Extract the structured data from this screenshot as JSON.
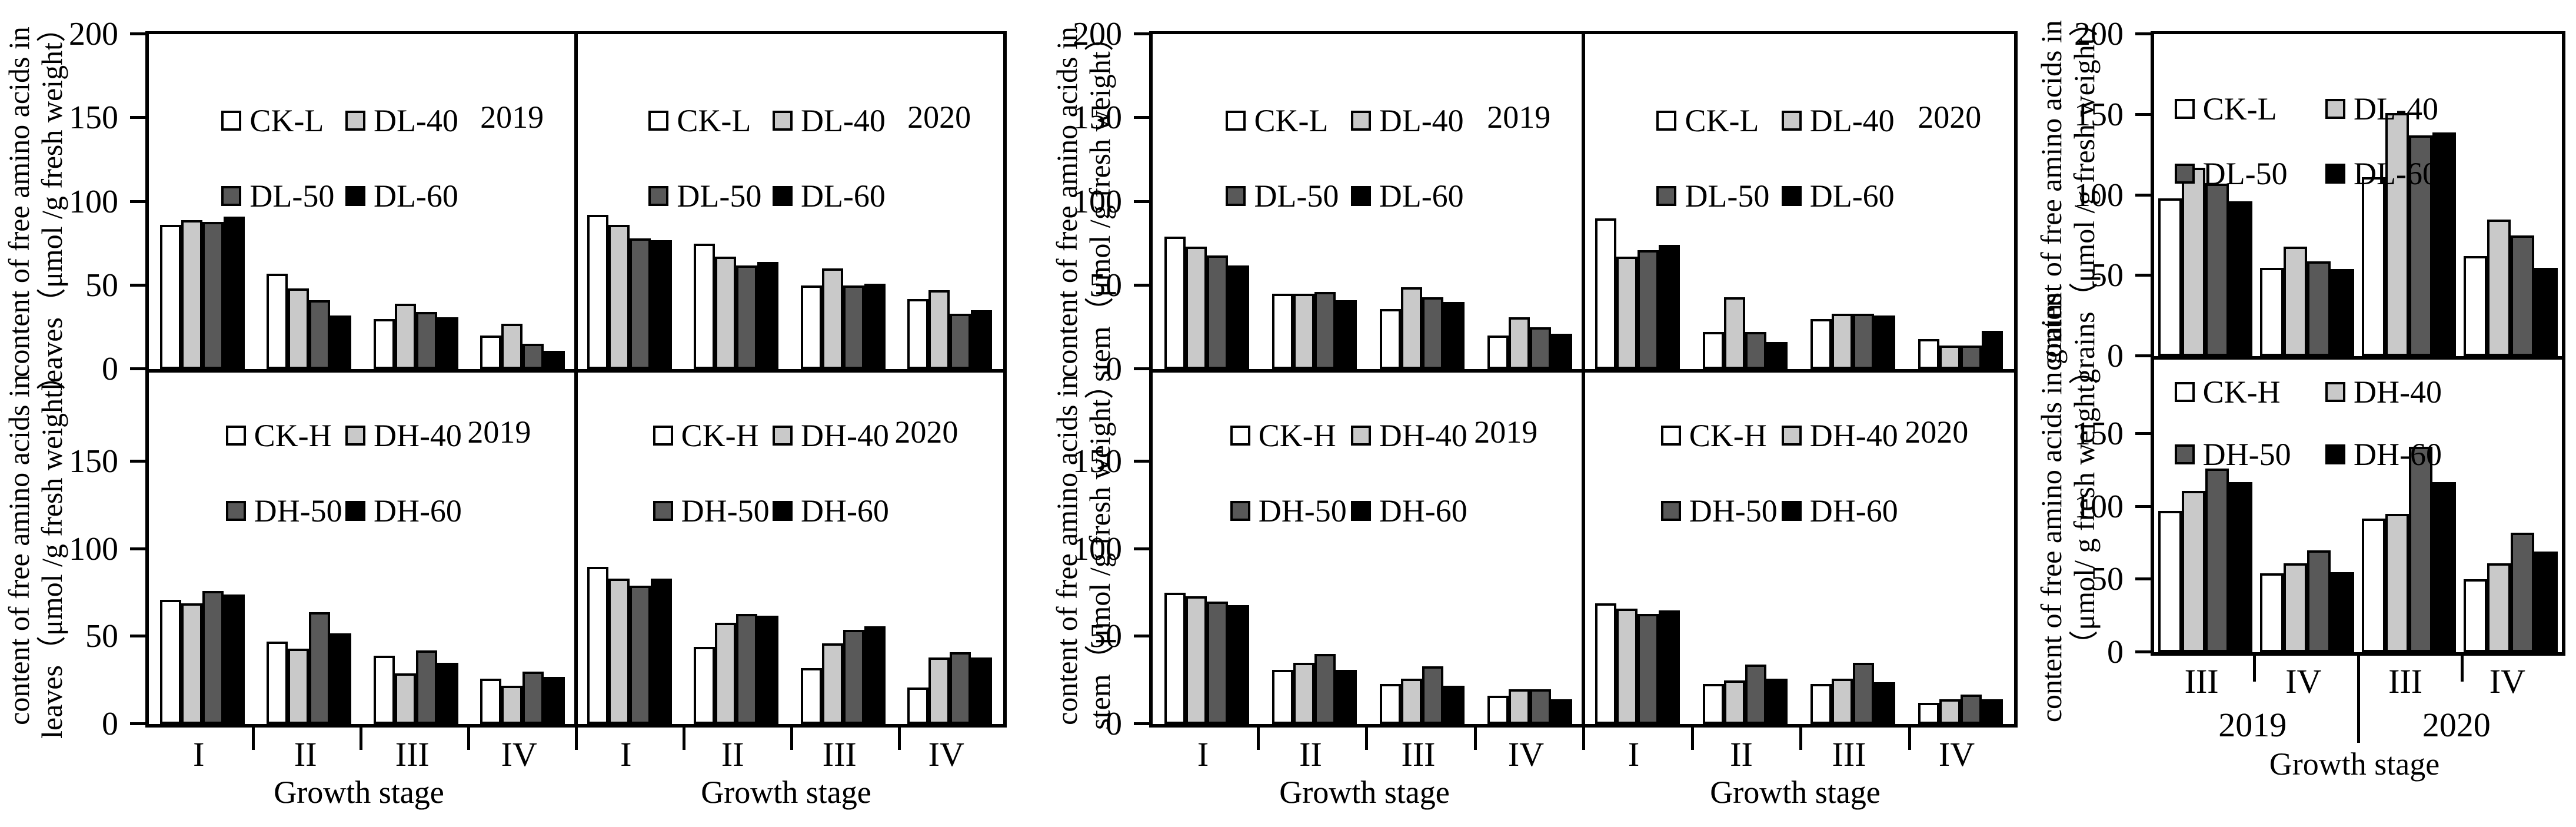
{
  "colors": {
    "series_fills": [
      "#ffffff",
      "#c9c9c9",
      "#595959",
      "#000000"
    ],
    "bar_border": "#000000",
    "axis": "#000000"
  },
  "axis": {
    "x_title": "Growth stage",
    "stages_full": [
      "I",
      "II",
      "III",
      "IV"
    ],
    "stages_grain": [
      "III",
      "IV",
      "III",
      "IV"
    ],
    "grain_year_groups": [
      "2019",
      "2020"
    ],
    "yticks_top": [
      "0",
      "50",
      "100",
      "150",
      "200"
    ],
    "yticks_bottom": [
      "0",
      "50",
      "100",
      "150"
    ]
  },
  "ylabels": {
    "leaves_line1": "content of free amino acids in",
    "leaves_line2": "leaves（μmol /g fresh weight）",
    "stem_line1": "content of free amino acids in",
    "stem_line2": "stem（μmol /g fresh weight）",
    "grains_top_line1": "content of free amino acids in",
    "grains_top_line2": "grains（μmol /g fresh weight）",
    "grains_bottom_line1": "content of free amino acids in grains",
    "grains_bottom_line2": "（μmol/ g fresh weight）"
  },
  "chart_data": [
    {
      "id": "lv19L",
      "type": "bar",
      "organ": "leaves",
      "year_label": "2019",
      "categories": [
        "I",
        "II",
        "III",
        "IV"
      ],
      "ylim": [
        0,
        200
      ],
      "series": [
        {
          "name": "CK-L",
          "values": [
            86,
            57,
            30,
            20
          ]
        },
        {
          "name": "DL-40",
          "values": [
            89,
            48,
            39,
            27
          ]
        },
        {
          "name": "DL-50",
          "values": [
            88,
            41,
            34,
            15
          ]
        },
        {
          "name": "DL-60",
          "values": [
            91,
            32,
            31,
            11
          ]
        }
      ]
    },
    {
      "id": "lv20L",
      "type": "bar",
      "organ": "leaves",
      "year_label": "2020",
      "categories": [
        "I",
        "II",
        "III",
        "IV"
      ],
      "ylim": [
        0,
        200
      ],
      "series": [
        {
          "name": "CK-L",
          "values": [
            92,
            75,
            50,
            42
          ]
        },
        {
          "name": "DL-40",
          "values": [
            86,
            67,
            60,
            47
          ]
        },
        {
          "name": "DL-50",
          "values": [
            78,
            62,
            50,
            33
          ]
        },
        {
          "name": "DL-60",
          "values": [
            77,
            64,
            51,
            35
          ]
        }
      ]
    },
    {
      "id": "lv19H",
      "type": "bar",
      "organ": "leaves",
      "year_label": "2019",
      "categories": [
        "I",
        "II",
        "III",
        "IV"
      ],
      "ylim": [
        0,
        200
      ],
      "series": [
        {
          "name": "CK-H",
          "values": [
            71,
            47,
            39,
            26
          ]
        },
        {
          "name": "DH-40",
          "values": [
            69,
            43,
            29,
            22
          ]
        },
        {
          "name": "DH-50",
          "values": [
            76,
            64,
            42,
            30
          ]
        },
        {
          "name": "DH-60",
          "values": [
            74,
            52,
            35,
            27
          ]
        }
      ]
    },
    {
      "id": "lv20H",
      "type": "bar",
      "organ": "leaves",
      "year_label": "2020",
      "categories": [
        "I",
        "II",
        "III",
        "IV"
      ],
      "ylim": [
        0,
        200
      ],
      "series": [
        {
          "name": "CK-H",
          "values": [
            90,
            44,
            32,
            21
          ]
        },
        {
          "name": "DH-40",
          "values": [
            83,
            58,
            46,
            38
          ]
        },
        {
          "name": "DH-50",
          "values": [
            79,
            63,
            54,
            41
          ]
        },
        {
          "name": "DH-60",
          "values": [
            83,
            62,
            56,
            38
          ]
        }
      ]
    },
    {
      "id": "st19L",
      "type": "bar",
      "organ": "stem",
      "year_label": "2019",
      "categories": [
        "I",
        "II",
        "III",
        "IV"
      ],
      "ylim": [
        0,
        200
      ],
      "series": [
        {
          "name": "CK-L",
          "values": [
            79,
            45,
            36,
            20
          ]
        },
        {
          "name": "DL-40",
          "values": [
            73,
            45,
            49,
            31
          ]
        },
        {
          "name": "DL-50",
          "values": [
            68,
            46,
            43,
            25
          ]
        },
        {
          "name": "DL-60",
          "values": [
            62,
            41,
            40,
            21
          ]
        }
      ]
    },
    {
      "id": "st20L",
      "type": "bar",
      "organ": "stem",
      "year_label": "2020",
      "categories": [
        "I",
        "II",
        "III",
        "IV"
      ],
      "ylim": [
        0,
        200
      ],
      "series": [
        {
          "name": "CK-L",
          "values": [
            90,
            22,
            30,
            18
          ]
        },
        {
          "name": "DL-40",
          "values": [
            67,
            43,
            33,
            14
          ]
        },
        {
          "name": "DL-50",
          "values": [
            71,
            22,
            33,
            14
          ]
        },
        {
          "name": "DL-60",
          "values": [
            74,
            16,
            32,
            23
          ]
        }
      ]
    },
    {
      "id": "st19H",
      "type": "bar",
      "organ": "stem",
      "year_label": "2019",
      "categories": [
        "I",
        "II",
        "III",
        "IV"
      ],
      "ylim": [
        0,
        200
      ],
      "series": [
        {
          "name": "CK-H",
          "values": [
            75,
            31,
            23,
            16
          ]
        },
        {
          "name": "DH-40",
          "values": [
            73,
            35,
            26,
            20
          ]
        },
        {
          "name": "DH-50",
          "values": [
            70,
            40,
            33,
            20
          ]
        },
        {
          "name": "DH-60",
          "values": [
            68,
            31,
            22,
            14
          ]
        }
      ]
    },
    {
      "id": "st20H",
      "type": "bar",
      "organ": "stem",
      "year_label": "2020",
      "categories": [
        "I",
        "II",
        "III",
        "IV"
      ],
      "ylim": [
        0,
        200
      ],
      "series": [
        {
          "name": "CK-H",
          "values": [
            69,
            23,
            23,
            12
          ]
        },
        {
          "name": "DH-40",
          "values": [
            66,
            25,
            26,
            14
          ]
        },
        {
          "name": "DH-50",
          "values": [
            63,
            34,
            35,
            17
          ]
        },
        {
          "name": "DH-60",
          "values": [
            65,
            26,
            24,
            14
          ]
        }
      ]
    },
    {
      "id": "grL",
      "type": "bar",
      "organ": "grains",
      "year_label": null,
      "categories": [
        "III",
        "IV",
        "III",
        "IV"
      ],
      "ylim": [
        0,
        200
      ],
      "series": [
        {
          "name": "CK-L",
          "values": [
            98,
            55,
            111,
            62
          ]
        },
        {
          "name": "DL-40",
          "values": [
            117,
            68,
            151,
            85
          ]
        },
        {
          "name": "DL-50",
          "values": [
            107,
            59,
            137,
            75
          ]
        },
        {
          "name": "DL-60",
          "values": [
            96,
            54,
            139,
            55
          ]
        }
      ]
    },
    {
      "id": "grH",
      "type": "bar",
      "organ": "grains",
      "year_label": null,
      "categories": [
        "III",
        "IV",
        "III",
        "IV"
      ],
      "ylim": [
        0,
        200
      ],
      "series": [
        {
          "name": "CK-H",
          "values": [
            97,
            54,
            92,
            50
          ]
        },
        {
          "name": "DH-40",
          "values": [
            111,
            61,
            95,
            61
          ]
        },
        {
          "name": "DH-50",
          "values": [
            126,
            70,
            141,
            82
          ]
        },
        {
          "name": "DH-60",
          "values": [
            117,
            55,
            117,
            69
          ]
        }
      ]
    }
  ]
}
